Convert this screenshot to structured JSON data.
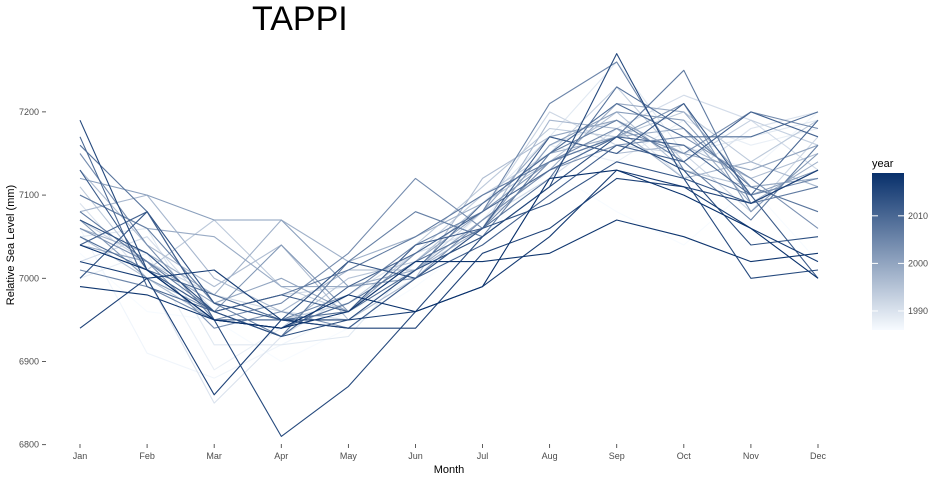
{
  "chart_data": {
    "type": "line",
    "title": "TAPPI",
    "xlabel": "Month",
    "ylabel": "Relative Sea Level (mm)",
    "categories": [
      "Jan",
      "Feb",
      "Mar",
      "Apr",
      "May",
      "Jun",
      "Jul",
      "Aug",
      "Sep",
      "Oct",
      "Nov",
      "Dec"
    ],
    "ylim": [
      6790,
      7290
    ],
    "yticks": [
      6800,
      6900,
      7000,
      7100,
      7200
    ],
    "grid": false,
    "legend": {
      "title": "year",
      "placement": "right",
      "ticks": [
        1990,
        2000,
        2010
      ],
      "range": [
        1986,
        2019
      ],
      "color_low": "#f7fbff",
      "color_high": "#08306b"
    },
    "series": [
      {
        "year": 1986,
        "values": [
          7030,
          6960,
          6950,
          6900,
          6940,
          6990,
          7050,
          7130,
          7080,
          7040,
          7110,
          7020
        ]
      },
      {
        "year": 1987,
        "values": [
          7060,
          6910,
          6880,
          6920,
          6960,
          7000,
          7080,
          7140,
          7170,
          7160,
          7130,
          7200
        ]
      },
      {
        "year": 1988,
        "values": [
          7000,
          7030,
          6890,
          6940,
          6970,
          7010,
          7070,
          7160,
          7140,
          7190,
          7160,
          7180
        ]
      },
      {
        "year": 1989,
        "values": [
          7050,
          7060,
          6920,
          6920,
          6930,
          7020,
          7090,
          7170,
          7260,
          7150,
          7170,
          7190
        ]
      },
      {
        "year": 1990,
        "values": [
          7090,
          7000,
          6850,
          6930,
          6980,
          7030,
          7060,
          7160,
          7190,
          7120,
          7180,
          7200
        ]
      },
      {
        "year": 1991,
        "values": [
          7020,
          7050,
          6960,
          6980,
          6990,
          7000,
          7070,
          7120,
          7180,
          7220,
          7190,
          7130
        ]
      },
      {
        "year": 1992,
        "values": [
          7070,
          7020,
          6980,
          6960,
          6950,
          7010,
          7080,
          7200,
          7160,
          7150,
          7080,
          7170
        ]
      },
      {
        "year": 1993,
        "values": [
          7040,
          7080,
          6970,
          6950,
          6970,
          7030,
          7100,
          7150,
          7230,
          7140,
          7190,
          7160
        ]
      },
      {
        "year": 1994,
        "values": [
          7110,
          7010,
          7070,
          6990,
          6960,
          7040,
          7110,
          7180,
          7170,
          7200,
          7140,
          7190
        ]
      },
      {
        "year": 1995,
        "values": [
          7050,
          7000,
          6950,
          6940,
          7000,
          7020,
          7090,
          7140,
          7200,
          7130,
          7110,
          7120
        ]
      },
      {
        "year": 1996,
        "values": [
          7130,
          7040,
          6990,
          7040,
          6950,
          7000,
          7120,
          7170,
          7150,
          7160,
          7120,
          7150
        ]
      },
      {
        "year": 1997,
        "values": [
          7080,
          7100,
          7000,
          6960,
          7010,
          7010,
          7060,
          7190,
          7180,
          7120,
          7140,
          7110
        ]
      },
      {
        "year": 1998,
        "values": [
          7060,
          7030,
          6980,
          7070,
          7020,
          7050,
          7090,
          7150,
          7170,
          7180,
          7090,
          7140
        ]
      },
      {
        "year": 1999,
        "values": [
          7100,
          7060,
          7050,
          6990,
          6990,
          7010,
          7070,
          7130,
          7210,
          7200,
          7110,
          7120
        ]
      },
      {
        "year": 2000,
        "values": [
          7040,
          7020,
          6970,
          7000,
          6960,
          7020,
          7080,
          7170,
          7190,
          7150,
          7130,
          7160
        ]
      },
      {
        "year": 2001,
        "values": [
          7120,
          7100,
          7070,
          7070,
          6990,
          7000,
          7060,
          7160,
          7200,
          7190,
          7100,
          7130
        ]
      },
      {
        "year": 2002,
        "values": [
          7070,
          7000,
          6960,
          7040,
          6960,
          7030,
          7080,
          7140,
          7170,
          7210,
          7080,
          7150
        ]
      },
      {
        "year": 2003,
        "values": [
          7060,
          7020,
          6940,
          6960,
          6940,
          7000,
          7070,
          7130,
          7160,
          7170,
          7120,
          7060
        ]
      },
      {
        "year": 2004,
        "values": [
          7150,
          7040,
          6950,
          6970,
          7030,
          7120,
          7060,
          7140,
          7180,
          7150,
          7200,
          7180
        ]
      },
      {
        "year": 2005,
        "values": [
          7010,
          6990,
          6950,
          6950,
          6980,
          7040,
          7080,
          7210,
          7260,
          7130,
          7100,
          7120
        ]
      },
      {
        "year": 2006,
        "values": [
          7100,
          7060,
          6970,
          6930,
          7020,
          7080,
          7050,
          7150,
          7190,
          7140,
          7070,
          7160
        ]
      },
      {
        "year": 2007,
        "values": [
          7080,
          7020,
          6960,
          6980,
          7010,
          7050,
          7100,
          7140,
          7170,
          7250,
          7090,
          7110
        ]
      },
      {
        "year": 2008,
        "values": [
          7160,
          7080,
          6950,
          6940,
          6970,
          7020,
          7060,
          7120,
          7230,
          7180,
          7110,
          7080
        ]
      },
      {
        "year": 2009,
        "values": [
          7050,
          7010,
          6980,
          6950,
          6960,
          7010,
          7090,
          7150,
          7210,
          7170,
          7170,
          7200
        ]
      },
      {
        "year": 2010,
        "values": [
          7170,
          6990,
          6960,
          6930,
          6990,
          7030,
          7080,
          7130,
          7170,
          7160,
          7100,
          7190
        ]
      },
      {
        "year": 2011,
        "values": [
          7040,
          7080,
          6950,
          6950,
          6940,
          7000,
          7040,
          7100,
          7160,
          7140,
          7200,
          7170
        ]
      },
      {
        "year": 2012,
        "values": [
          7130,
          7010,
          6960,
          6980,
          6960,
          7040,
          7060,
          7170,
          7150,
          7210,
          7100,
          7000
        ]
      },
      {
        "year": 2013,
        "values": [
          7000,
          7080,
          6970,
          6950,
          7020,
          7000,
          7060,
          7090,
          7140,
          7120,
          7090,
          7130
        ]
      },
      {
        "year": 2014,
        "values": [
          7070,
          7030,
          6960,
          6930,
          6950,
          7010,
          7050,
          7110,
          7170,
          7130,
          7040,
          7050
        ]
      },
      {
        "year": 2015,
        "values": [
          7190,
          7010,
          6950,
          6810,
          6870,
          6960,
          7050,
          7110,
          7270,
          7120,
          7000,
          7010
        ]
      },
      {
        "year": 2016,
        "values": [
          6940,
          7000,
          6860,
          6950,
          6940,
          6940,
          7030,
          7060,
          7120,
          7110,
          7090,
          7130
        ]
      },
      {
        "year": 2017,
        "values": [
          7020,
          7000,
          7010,
          6950,
          6950,
          6960,
          6990,
          7050,
          7130,
          7110,
          7060,
          7020
        ]
      },
      {
        "year": 2018,
        "values": [
          6990,
          6980,
          6950,
          6940,
          6960,
          7020,
          7020,
          7030,
          7070,
          7050,
          7020,
          7030
        ]
      },
      {
        "year": 2019,
        "values": [
          7040,
          7010,
          6950,
          6940,
          6980,
          6960,
          6990,
          7120,
          7130,
          7100,
          7060,
          7000
        ]
      }
    ]
  }
}
